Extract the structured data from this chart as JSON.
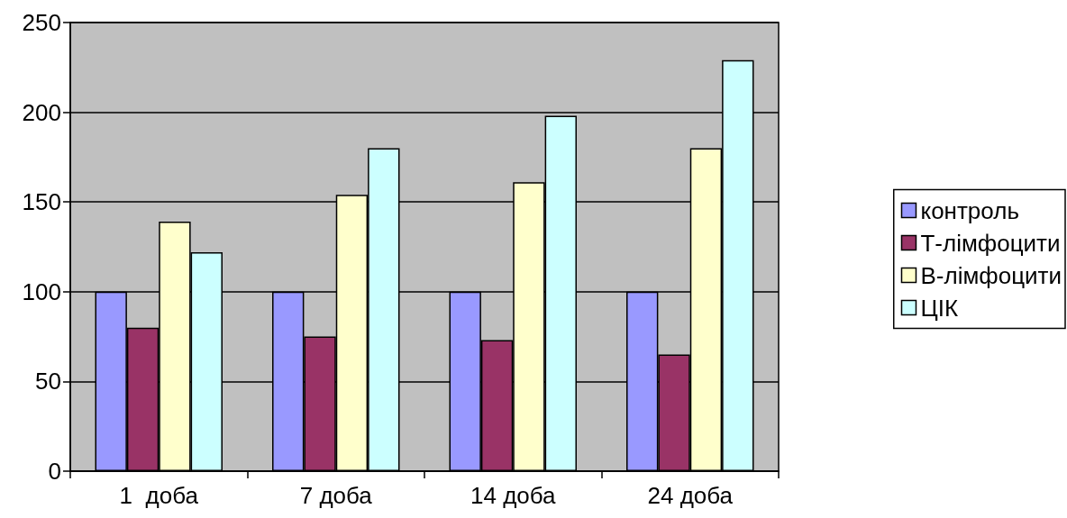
{
  "chart_data": {
    "type": "bar",
    "categories": [
      "1  доба",
      "7 доба",
      "14 доба",
      "24 доба"
    ],
    "series": [
      {
        "name": "контроль",
        "color": "#9999ff",
        "values": [
          100,
          100,
          100,
          100
        ]
      },
      {
        "name": "Т-лімфоцити",
        "color": "#993366",
        "values": [
          80,
          75,
          73,
          65
        ]
      },
      {
        "name": "В-лімфоцити",
        "color": "#ffffcc",
        "values": [
          139,
          154,
          161,
          180
        ]
      },
      {
        "name": "ЦІК",
        "color": "#ccffff",
        "values": [
          122,
          180,
          198,
          229
        ]
      }
    ],
    "ylim": [
      0,
      250
    ],
    "yticks": [
      0,
      50,
      100,
      150,
      200,
      250
    ],
    "grid": "y",
    "legend": "right"
  }
}
